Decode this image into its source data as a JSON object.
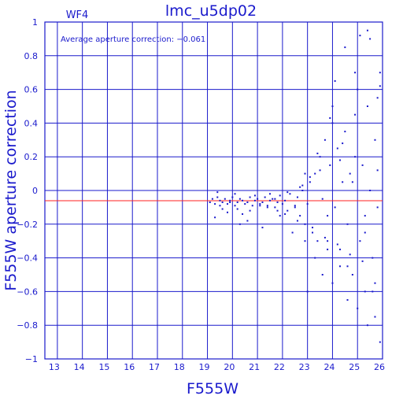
{
  "chart_data": {
    "type": "scatter",
    "title": "lmc_u5dp02",
    "panel_label": "WF4",
    "annotation": "Average aperture correction: −0.061",
    "xlabel": "F555W",
    "ylabel": "F555W aperture correction",
    "xlim": [
      12.5,
      26
    ],
    "ylim": [
      -1,
      1
    ],
    "x_ticks": [
      "13",
      "14",
      "15",
      "16",
      "17",
      "18",
      "19",
      "20",
      "21",
      "22",
      "23",
      "24",
      "25",
      "26"
    ],
    "y_ticks": [
      "−1",
      "−0.8",
      "−0.6",
      "−0.4",
      "−0.2",
      "0",
      "0.2",
      "0.4",
      "0.6",
      "0.8",
      "1"
    ],
    "grid": true,
    "average_line": -0.061,
    "zero_line": 0,
    "colors": {
      "axes": "#1a1acc",
      "points": "#1a1acc",
      "average_line": "#ff2020"
    },
    "series": [
      {
        "x": [
          19.1,
          19.2,
          19.3,
          19.4,
          19.5,
          19.5,
          19.6,
          19.7,
          19.8,
          19.9,
          20.0,
          20.1,
          20.2,
          20.3,
          20.4,
          20.5,
          20.6,
          20.7,
          20.8,
          20.9,
          21.0,
          21.1,
          21.2,
          21.3,
          21.4,
          21.5,
          21.6,
          21.7,
          21.8,
          21.9,
          22.0,
          22.1,
          22.2,
          22.3,
          22.5,
          22.6,
          22.7,
          22.8,
          22.9,
          23.0,
          23.1,
          23.2,
          23.3,
          23.4,
          23.5,
          23.6,
          23.7,
          23.8,
          23.9,
          24.0,
          24.1,
          24.2,
          24.3,
          24.4,
          24.5,
          24.6,
          24.7,
          24.8,
          24.9,
          25.0,
          25.1,
          25.2,
          25.3,
          25.4,
          25.5,
          25.6,
          25.7,
          25.8,
          25.9,
          19.3,
          19.8,
          20.3,
          20.6,
          21.2,
          21.9,
          22.4,
          22.9,
          23.3,
          23.6,
          24.0,
          24.3,
          24.6,
          25.0,
          25.4,
          25.7,
          19.4,
          20.1,
          20.9,
          21.5,
          22.2,
          22.7,
          23.1,
          23.8,
          24.4,
          24.9,
          25.3,
          25.8,
          19.6,
          20.4,
          21.1,
          21.8,
          22.6,
          23.2,
          23.7,
          24.2,
          24.7,
          25.2,
          25.6,
          25.9,
          24.0,
          24.1,
          23.9,
          24.5,
          25.1,
          25.5,
          25.9,
          24.8,
          23.5,
          22.8,
          20.7,
          21.4,
          22.1,
          19.9,
          20.2,
          21.7,
          22.5,
          23.0,
          24.6,
          25.3,
          25.7,
          24.3,
          23.4,
          22.9,
          23.8,
          24.9,
          25.4,
          25.8
        ],
        "y": [
          -0.07,
          -0.05,
          -0.08,
          -0.04,
          -0.06,
          -0.09,
          -0.07,
          -0.05,
          -0.08,
          -0.06,
          -0.04,
          -0.09,
          -0.07,
          -0.05,
          -0.06,
          -0.08,
          -0.07,
          -0.04,
          -0.09,
          -0.06,
          -0.05,
          -0.08,
          -0.07,
          -0.04,
          -0.09,
          -0.06,
          -0.05,
          -0.1,
          -0.07,
          -0.03,
          -0.08,
          -0.06,
          -0.12,
          -0.02,
          -0.1,
          -0.04,
          -0.15,
          0.0,
          -0.2,
          -0.08,
          0.05,
          -0.25,
          0.1,
          -0.3,
          0.2,
          -0.05,
          0.3,
          -0.35,
          0.15,
          0.4,
          -0.1,
          0.25,
          -0.45,
          0.05,
          0.35,
          -0.2,
          0.1,
          -0.5,
          0.2,
          0.6,
          -0.3,
          0.15,
          -0.6,
          0.5,
          0.0,
          -0.4,
          0.3,
          -0.1,
          0.7,
          -0.16,
          -0.13,
          -0.2,
          -0.18,
          -0.22,
          -0.15,
          -0.25,
          -0.3,
          -0.4,
          -0.5,
          -0.55,
          -0.35,
          -0.65,
          -0.7,
          -0.8,
          -0.55,
          -0.01,
          -0.02,
          -0.03,
          -0.02,
          -0.01,
          0.02,
          0.08,
          -0.15,
          0.28,
          0.45,
          -0.25,
          0.12,
          -0.11,
          -0.14,
          -0.09,
          -0.12,
          -0.18,
          -0.22,
          -0.28,
          -0.32,
          -0.38,
          -0.42,
          -0.6,
          -0.9,
          0.5,
          0.65,
          0.43,
          0.85,
          0.92,
          0.9,
          0.62,
          0.05,
          0.12,
          0.03,
          -0.12,
          -0.1,
          -0.14,
          -0.07,
          -0.11,
          -0.05,
          -0.09,
          -0.6,
          -0.45,
          -0.15,
          -0.75,
          0.18,
          0.22,
          0.1,
          -0.3,
          0.7,
          0.95,
          0.55
        ]
      }
    ]
  }
}
